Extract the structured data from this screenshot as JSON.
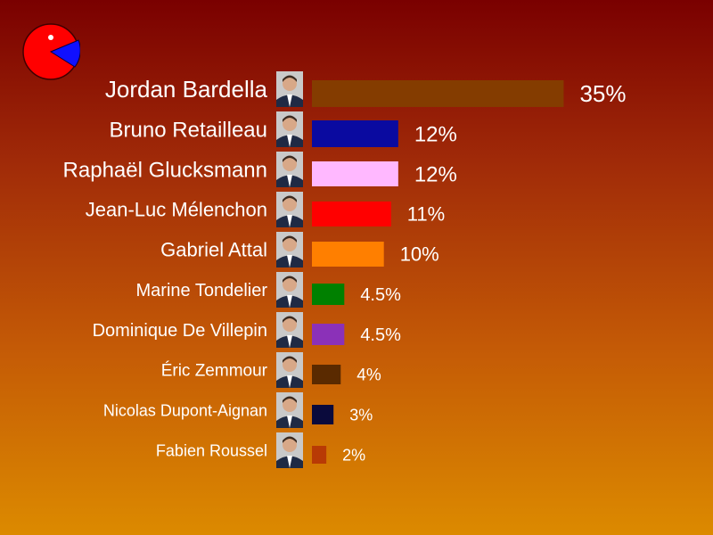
{
  "chart_data": {
    "type": "bar",
    "orientation": "horizontal",
    "categories": [
      "Jordan Bardella",
      "Bruno Retailleau",
      "Raphaël Glucksmann",
      "Jean-Luc Mélenchon",
      "Gabriel Attal",
      "Marine Tondelier",
      "Dominique De Villepin",
      "Éric Zemmour",
      "Nicolas Dupont-Aignan",
      "Fabien Roussel"
    ],
    "values": [
      35,
      12,
      12,
      11,
      10,
      4.5,
      4.5,
      4,
      3,
      2
    ],
    "value_labels": [
      "35%",
      "12%",
      "12%",
      "11%",
      "10%",
      "4.5%",
      "4.5%",
      "4%",
      "3%",
      "2%"
    ],
    "colors": [
      "#843c00",
      "#0a0aa0",
      "#ffb8ff",
      "#ff0000",
      "#ff7f00",
      "#008000",
      "#8b31b8",
      "#5a2a00",
      "#0a0a3c",
      "#b83a05"
    ],
    "unit": "%",
    "grid": false,
    "legend": "none"
  },
  "logo": {
    "icon": "pacman-pie-icon",
    "body_color": "#ff0000",
    "slice_color": "#1010ff"
  },
  "portrait_icons": [
    "person-portrait-icon"
  ]
}
